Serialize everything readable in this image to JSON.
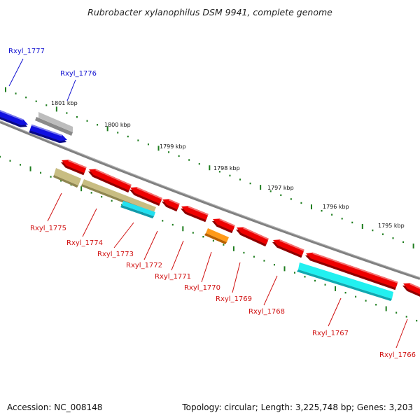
{
  "title": "Rubrobacter xylanophilus DSM 9941, complete genome",
  "footer": {
    "accession": "Accession: NC_008148",
    "summary": "Topology: circular; Length: 3,225,748 bp; Genes: 3,203"
  },
  "colors": {
    "backbone": "#808080",
    "tick": "#1e7d1e",
    "label_forward": "#1010d0",
    "label_reverse": "#d01010"
  },
  "scale_labels": [
    "1801 kbp",
    "1800 kbp",
    "1799 kbp",
    "1798 kbp",
    "1797 kbp",
    "1796 kbp",
    "1795 kbp"
  ],
  "genes": [
    {
      "locus": "Rxyl_1777",
      "strand": "forward",
      "color": "#1010e0"
    },
    {
      "locus": "Rxyl_1776",
      "strand": "forward",
      "color": "#1010e0"
    },
    {
      "locus": "Rxyl_1775",
      "strand": "reverse",
      "color": "#ee0000"
    },
    {
      "locus": "Rxyl_1774",
      "strand": "reverse",
      "color": "#ee0000"
    },
    {
      "locus": "Rxyl_1773",
      "strand": "reverse",
      "color": "#ee0000"
    },
    {
      "locus": "Rxyl_1772",
      "strand": "reverse",
      "color": "#ee0000"
    },
    {
      "locus": "Rxyl_1771",
      "strand": "reverse",
      "color": "#ee0000"
    },
    {
      "locus": "Rxyl_1770",
      "strand": "reverse",
      "color": "#ee0000"
    },
    {
      "locus": "Rxyl_1769",
      "strand": "reverse",
      "color": "#ee0000"
    },
    {
      "locus": "Rxyl_1768",
      "strand": "reverse",
      "color": "#ee0000"
    },
    {
      "locus": "Rxyl_1767",
      "strand": "reverse",
      "color": "#ee0000"
    },
    {
      "locus": "Rxyl_1766",
      "strand": "reverse",
      "color": "#ee0000"
    }
  ]
}
